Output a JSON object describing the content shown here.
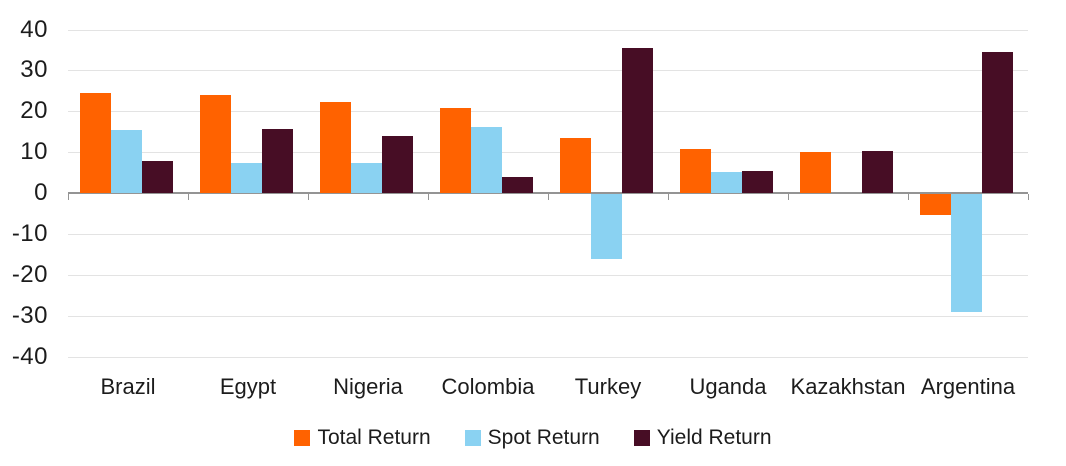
{
  "chart_data": {
    "type": "bar",
    "title": "",
    "categories": [
      "Brazil",
      "Egypt",
      "Nigeria",
      "Colombia",
      "Turkey",
      "Uganda",
      "Kazakhstan",
      "Argentina"
    ],
    "series": [
      {
        "name": "Total Return",
        "color": "#FF6200",
        "values": [
          24.4,
          24.0,
          22.3,
          20.9,
          13.5,
          10.8,
          10.0,
          -5.5
        ]
      },
      {
        "name": "Spot Return",
        "color": "#8AD2F2",
        "values": [
          15.3,
          7.4,
          7.3,
          16.2,
          -16.2,
          5.1,
          0,
          -29.1
        ]
      },
      {
        "name": "Yield Return",
        "color": "#470D25",
        "values": [
          7.8,
          15.6,
          13.9,
          4.0,
          35.4,
          5.4,
          10.3,
          34.5
        ]
      }
    ],
    "xlabel": "",
    "ylabel": "",
    "ylim": [
      -40,
      40
    ],
    "yticks": [
      40,
      30,
      20,
      10,
      0,
      -10,
      -20,
      -30,
      -40
    ],
    "grid": "horizontal",
    "legend_position": "bottom",
    "colors": {
      "grid_color": "#E3E3E3",
      "zero_axis_color": "#949494",
      "tick_color": "#949494",
      "text_color": "#1C1C1C",
      "background": "#FFFFFF"
    }
  }
}
